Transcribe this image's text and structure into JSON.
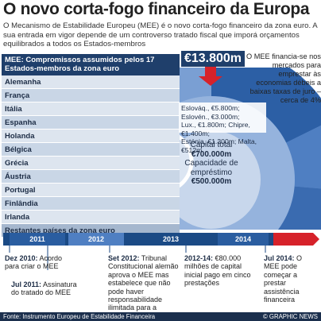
{
  "title": "O novo corta-fogo financeiro da Europa",
  "intro": "O Mecanismo de Estabilidade Europeu (MEE) é o novo corta-fogo financeiro da zona euro. A sua entrada em vigor depende de um controverso tratado fiscal que imporá orçamentos equilibrados a todos os Estados-membros",
  "countries": {
    "header": "MEE: Compromissos assumidos pelos 17 Estados-membros da zona euro",
    "items": [
      "Alemanha",
      "França",
      "Itália",
      "Espanha",
      "Holanda",
      "Bélgica",
      "Grécia",
      "Áustria",
      "Portugal",
      "Finlândia",
      "Irlanda"
    ],
    "rest": "Restantes países da zona euro"
  },
  "amount": "€13.800m",
  "side_note": "O MEE financia-se nos mercados para emprestar às economias débeis a baixas taxas de juro –cerca de 4%",
  "loans": {
    "line1": "Eslováq., €5.800m; Eslovén., €3.000m;",
    "line2": "Lux., €1.800m; Chipre, €1.400m;",
    "line3": "Estónia, €1.300m; Malta, €512m"
  },
  "capital": {
    "label1": "Capital total",
    "value1": "€700.000m",
    "label2": "Capacidade de empréstimo",
    "value2": "€500.000m"
  },
  "timeline": {
    "years": [
      "2011",
      "2012",
      "2013",
      "2014"
    ],
    "events": [
      {
        "date": "Dez 2010:",
        "text": "Acordo para criar o MEE"
      },
      {
        "date": "Jul 2011:",
        "text": "Assinatura do tratado do MEE"
      },
      {
        "date": "Set 2012:",
        "text": "Tribunal Constitucional alemão aprova o MEE mas estabelece que não pode haver responsabilidade ilimitada para a Alemanha"
      },
      {
        "date": "2012-14:",
        "text": "€80.000 milhões de capital inicial pago em cinco prestações"
      },
      {
        "date": "Jul 2014:",
        "text": "O MEE pode começar a prestar assistência financeira"
      }
    ]
  },
  "footer": {
    "source": "Fonte: Instrumento Europeu de Estabilidade Financeira",
    "brand": "© GRAPHIC NEWS"
  },
  "colors": {
    "navy": "#1f3f6b",
    "blue_dark": "#1b4a85",
    "blue_mid": "#3d6fb3",
    "blue_light": "#7a9fd3",
    "red": "#d6222a"
  },
  "icons": {
    "play": "play-icon",
    "arrow": "red-arrow-down-icon"
  }
}
